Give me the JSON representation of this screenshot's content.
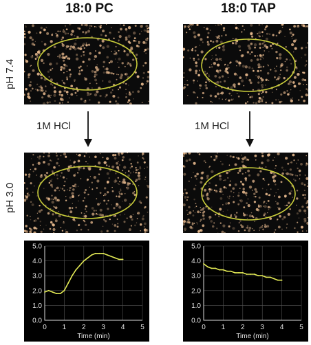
{
  "columns": [
    {
      "title": "18:0 PC"
    },
    {
      "title": "18:0 TAP"
    }
  ],
  "row_labels": {
    "top": "pH 7.4",
    "bottom": "pH 3.0"
  },
  "reagent_label": "1M HCl",
  "colors": {
    "ellipse": "#c8cc3a",
    "speckle": "#e7b98d",
    "line": "#e3ea55",
    "axis_text": "#e6e6e6"
  },
  "chart_data": [
    {
      "type": "line",
      "xlabel": "Time (min)",
      "ylabel": "",
      "xlim": [
        0,
        5
      ],
      "ylim": [
        0,
        5
      ],
      "x_ticks": [
        "0",
        "1",
        "2",
        "3",
        "4",
        "5"
      ],
      "y_ticks": [
        "0.0",
        "1.0",
        "2.0",
        "3.0",
        "4.0",
        "5.0"
      ],
      "grid": true,
      "series": [
        {
          "x": [
            0,
            0.2,
            0.4,
            0.6,
            0.8,
            1.0,
            1.2,
            1.4,
            1.6,
            1.8,
            2.0,
            2.2,
            2.4,
            2.6,
            2.8,
            3.0,
            3.2,
            3.4,
            3.6,
            3.8,
            4.0
          ],
          "y": [
            1.9,
            2.0,
            1.9,
            1.8,
            1.8,
            2.0,
            2.5,
            3.0,
            3.4,
            3.7,
            4.0,
            4.2,
            4.4,
            4.5,
            4.5,
            4.5,
            4.4,
            4.3,
            4.2,
            4.1,
            4.1
          ]
        }
      ]
    },
    {
      "type": "line",
      "xlabel": "Time (min)",
      "ylabel": "",
      "xlim": [
        0,
        5
      ],
      "ylim": [
        0,
        5
      ],
      "x_ticks": [
        "0",
        "1",
        "2",
        "3",
        "4",
        "5"
      ],
      "y_ticks": [
        "0.0",
        "1.0",
        "2.0",
        "3.0",
        "4.0",
        "5.0"
      ],
      "grid": true,
      "series": [
        {
          "x": [
            0,
            0.2,
            0.4,
            0.6,
            0.8,
            1.0,
            1.2,
            1.4,
            1.6,
            1.8,
            2.0,
            2.2,
            2.4,
            2.6,
            2.8,
            3.0,
            3.2,
            3.4,
            3.6,
            3.8,
            4.0
          ],
          "y": [
            3.8,
            3.6,
            3.5,
            3.5,
            3.4,
            3.4,
            3.3,
            3.3,
            3.2,
            3.2,
            3.2,
            3.1,
            3.1,
            3.1,
            3.0,
            3.0,
            2.9,
            2.9,
            2.8,
            2.7,
            2.7
          ]
        }
      ]
    }
  ]
}
